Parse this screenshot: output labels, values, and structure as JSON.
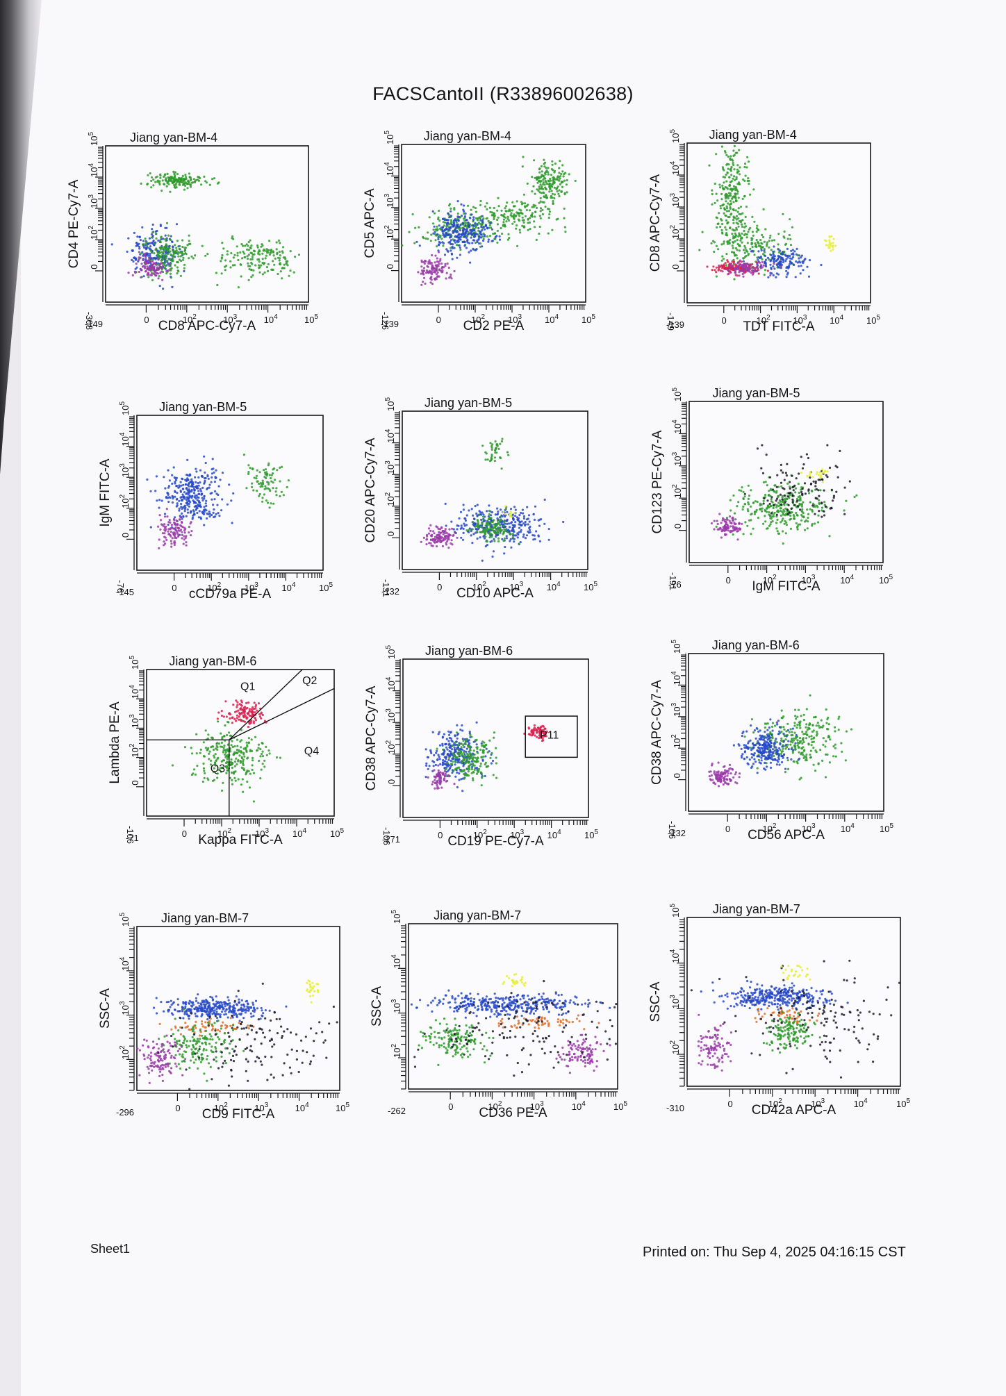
{
  "document": {
    "title": "FACSCantoII (R33896002638)",
    "sheet": "Sheet1",
    "printed": "Printed on: Thu Sep 4, 2025 04:16:15 CST"
  },
  "colors": {
    "green": "#2e9a2a",
    "blue": "#2749c8",
    "purple": "#9a3aa8",
    "red": "#d8204e",
    "yellow": "#e6ee3a",
    "orange": "#e0702a",
    "dark": "#1a1a2a"
  },
  "chart_data": [
    {
      "type": "scatter",
      "title": "Jiang yan-BM-4",
      "xlabel": "CD8 APC-Cy7-A",
      "ylabel": "CD4 PE-Cy7-A",
      "xmin_label": "-149",
      "ymin_label": "-308",
      "xlog": true,
      "ylog": true,
      "xlim": [
        0,
        5
      ],
      "ylim": [
        0,
        5
      ],
      "clusters": [
        {
          "color": "green",
          "x": 1.8,
          "y": 3.9,
          "sx": 0.35,
          "sy": 0.12,
          "n": 160
        },
        {
          "color": "green",
          "x": 3.7,
          "y": 1.4,
          "sx": 0.5,
          "sy": 0.3,
          "n": 170
        },
        {
          "color": "blue",
          "x": 1.2,
          "y": 1.6,
          "sx": 0.3,
          "sy": 0.35,
          "n": 220
        },
        {
          "color": "green",
          "x": 1.5,
          "y": 1.5,
          "sx": 0.3,
          "sy": 0.35,
          "n": 180
        },
        {
          "color": "purple",
          "x": 1.1,
          "y": 1.1,
          "sx": 0.2,
          "sy": 0.2,
          "n": 90
        }
      ]
    },
    {
      "type": "scatter",
      "title": "Jiang yan-BM-4",
      "xlabel": "CD2 PE-A",
      "ylabel": "CD5 APC-A",
      "xmin_label": "-139",
      "ymin_label": "-126",
      "xlog": true,
      "ylog": true,
      "xlim": [
        0,
        5
      ],
      "ylim": [
        0,
        5
      ],
      "clusters": [
        {
          "color": "green",
          "x": 4.0,
          "y": 3.8,
          "sx": 0.25,
          "sy": 0.35,
          "n": 170
        },
        {
          "color": "green",
          "x": 3.2,
          "y": 2.7,
          "sx": 0.6,
          "sy": 0.25,
          "n": 160
        },
        {
          "color": "green",
          "x": 1.6,
          "y": 2.4,
          "sx": 0.6,
          "sy": 0.3,
          "n": 200
        },
        {
          "color": "blue",
          "x": 1.6,
          "y": 2.2,
          "sx": 0.4,
          "sy": 0.3,
          "n": 260
        },
        {
          "color": "purple",
          "x": 0.9,
          "y": 1.0,
          "sx": 0.2,
          "sy": 0.2,
          "n": 110
        }
      ]
    },
    {
      "type": "scatter",
      "title": "Jiang yan-BM-4",
      "xlabel": "TDT FITC-A",
      "ylabel": "CD8 APC-Cy7-A",
      "xmin_label": "-139",
      "ymin_label": "-149",
      "xlog": true,
      "ylog": true,
      "xlim": [
        0,
        5
      ],
      "ylim": [
        0,
        5
      ],
      "clusters": [
        {
          "color": "green",
          "x": 1.2,
          "y": 3.4,
          "sx": 0.25,
          "sy": 0.8,
          "n": 260
        },
        {
          "color": "green",
          "x": 1.8,
          "y": 1.8,
          "sx": 0.5,
          "sy": 0.4,
          "n": 180
        },
        {
          "color": "blue",
          "x": 2.6,
          "y": 1.3,
          "sx": 0.45,
          "sy": 0.2,
          "n": 150
        },
        {
          "color": "red",
          "x": 1.3,
          "y": 1.1,
          "sx": 0.3,
          "sy": 0.1,
          "n": 120
        },
        {
          "color": "purple",
          "x": 1.6,
          "y": 1.1,
          "sx": 0.3,
          "sy": 0.1,
          "n": 90
        },
        {
          "color": "yellow",
          "x": 3.9,
          "y": 1.8,
          "sx": 0.08,
          "sy": 0.12,
          "n": 22
        }
      ]
    },
    {
      "type": "scatter",
      "title": "Jiang yan-BM-5",
      "xlabel": "cCD79a PE-A",
      "ylabel": "IgM FITC-A",
      "xmin_label": "-145",
      "ymin_label": "-76",
      "xlog": true,
      "ylog": true,
      "xlim": [
        0,
        5
      ],
      "ylim": [
        0,
        5
      ],
      "clusters": [
        {
          "color": "blue",
          "x": 1.5,
          "y": 2.4,
          "sx": 0.4,
          "sy": 0.45,
          "n": 320
        },
        {
          "color": "purple",
          "x": 1.0,
          "y": 1.3,
          "sx": 0.2,
          "sy": 0.25,
          "n": 110
        },
        {
          "color": "green",
          "x": 3.4,
          "y": 2.8,
          "sx": 0.25,
          "sy": 0.35,
          "n": 80
        }
      ]
    },
    {
      "type": "scatter",
      "title": "Jiang yan-BM-5",
      "xlabel": "CD10 APC-A",
      "ylabel": "CD20 APC-Cy7-A",
      "xmin_label": "-132",
      "ymin_label": "-131",
      "xlog": true,
      "ylog": true,
      "xlim": [
        0,
        5
      ],
      "ylim": [
        0,
        5
      ],
      "clusters": [
        {
          "color": "blue",
          "x": 2.6,
          "y": 1.4,
          "sx": 0.6,
          "sy": 0.3,
          "n": 320
        },
        {
          "color": "green",
          "x": 2.4,
          "y": 1.3,
          "sx": 0.25,
          "sy": 0.2,
          "n": 120
        },
        {
          "color": "green",
          "x": 2.5,
          "y": 3.7,
          "sx": 0.15,
          "sy": 0.2,
          "n": 40
        },
        {
          "color": "purple",
          "x": 1.0,
          "y": 1.0,
          "sx": 0.2,
          "sy": 0.15,
          "n": 110
        },
        {
          "color": "yellow",
          "x": 2.8,
          "y": 1.8,
          "sx": 0.1,
          "sy": 0.1,
          "n": 10
        }
      ]
    },
    {
      "type": "scatter",
      "title": "Jiang yan-BM-5",
      "xlabel": "IgM FITC-A",
      "ylabel": "CD123 PE-Cy7-A",
      "xmin_label": "-76",
      "ymin_label": "-191",
      "xlog": true,
      "ylog": true,
      "xlim": [
        0,
        5
      ],
      "ylim": [
        0,
        5
      ],
      "clusters": [
        {
          "color": "green",
          "x": 2.4,
          "y": 1.7,
          "sx": 0.6,
          "sy": 0.4,
          "n": 300
        },
        {
          "color": "dark",
          "x": 2.9,
          "y": 2.2,
          "sx": 0.6,
          "sy": 0.5,
          "n": 120
        },
        {
          "color": "purple",
          "x": 1.0,
          "y": 1.1,
          "sx": 0.2,
          "sy": 0.15,
          "n": 90
        },
        {
          "color": "yellow",
          "x": 3.3,
          "y": 2.7,
          "sx": 0.15,
          "sy": 0.15,
          "n": 20
        }
      ]
    },
    {
      "type": "scatter",
      "title": "Jiang yan-BM-6",
      "xlabel": "Kappa FITC-A",
      "ylabel": "Lambda PE-A",
      "xmin_label": "-71",
      "ymin_label": "-106",
      "xlog": true,
      "ylog": true,
      "xlim": [
        0,
        5
      ],
      "ylim": [
        0,
        5
      ],
      "quadrants": [
        "Q1",
        "Q2",
        "Q3",
        "Q4"
      ],
      "clusters": [
        {
          "color": "green",
          "x": 2.2,
          "y": 2.0,
          "sx": 0.5,
          "sy": 0.5,
          "n": 260
        },
        {
          "color": "red",
          "x": 2.6,
          "y": 3.5,
          "sx": 0.25,
          "sy": 0.2,
          "n": 120
        }
      ]
    },
    {
      "type": "scatter",
      "title": "Jiang yan-BM-6",
      "xlabel": "CD19 PE-Cy7-A",
      "ylabel": "CD38 APC-Cy7-A",
      "xmin_label": "-171",
      "ymin_label": "-106",
      "xlog": true,
      "ylog": true,
      "xlim": [
        0,
        5
      ],
      "ylim": [
        0,
        5
      ],
      "gate": "P11",
      "clusters": [
        {
          "color": "blue",
          "x": 1.4,
          "y": 2.0,
          "sx": 0.35,
          "sy": 0.4,
          "n": 260
        },
        {
          "color": "green",
          "x": 1.8,
          "y": 1.9,
          "sx": 0.35,
          "sy": 0.35,
          "n": 180
        },
        {
          "color": "purple",
          "x": 1.0,
          "y": 1.2,
          "sx": 0.15,
          "sy": 0.15,
          "n": 60
        },
        {
          "color": "red",
          "x": 3.7,
          "y": 2.7,
          "sx": 0.15,
          "sy": 0.1,
          "n": 70
        }
      ]
    },
    {
      "type": "scatter",
      "title": "Jiang yan-BM-6",
      "xlabel": "CD56 APC-A",
      "ylabel": "CD38 APC-Cy7-A",
      "xmin_label": "-132",
      "ymin_label": "-106",
      "xlog": true,
      "ylog": true,
      "xlim": [
        0,
        5
      ],
      "ylim": [
        0,
        5
      ],
      "clusters": [
        {
          "color": "green",
          "x": 2.8,
          "y": 2.3,
          "sx": 0.5,
          "sy": 0.45,
          "n": 260
        },
        {
          "color": "blue",
          "x": 2.0,
          "y": 2.0,
          "sx": 0.3,
          "sy": 0.3,
          "n": 260
        },
        {
          "color": "purple",
          "x": 0.9,
          "y": 1.1,
          "sx": 0.2,
          "sy": 0.15,
          "n": 100
        }
      ]
    },
    {
      "type": "scatter",
      "title": "Jiang yan-BM-7",
      "xlabel": "CD9 FITC-A",
      "ylabel": "SSC-A",
      "xmin_label": "-296",
      "ymin_label": "",
      "xlog": true,
      "ylog": true,
      "xlim": [
        0,
        5
      ],
      "ylim": [
        1.3,
        5
      ],
      "clusters": [
        {
          "color": "blue",
          "x": 1.9,
          "y": 3.15,
          "sx": 0.6,
          "sy": 0.12,
          "n": 320
        },
        {
          "color": "orange",
          "x": 1.9,
          "y": 2.75,
          "sx": 0.5,
          "sy": 0.08,
          "n": 60
        },
        {
          "color": "green",
          "x": 1.5,
          "y": 2.3,
          "sx": 0.45,
          "sy": 0.25,
          "n": 160
        },
        {
          "color": "purple",
          "x": 0.6,
          "y": 2.0,
          "sx": 0.25,
          "sy": 0.2,
          "n": 110
        },
        {
          "color": "dark",
          "x": 2.8,
          "y": 2.4,
          "sx": 1.0,
          "sy": 0.45,
          "n": 140
        },
        {
          "color": "yellow",
          "x": 4.3,
          "y": 3.6,
          "sx": 0.08,
          "sy": 0.1,
          "n": 25
        }
      ]
    },
    {
      "type": "scatter",
      "title": "Jiang yan-BM-7",
      "xlabel": "CD36 PE-A",
      "ylabel": "SSC-A",
      "xmin_label": "-262",
      "ymin_label": "",
      "xlog": true,
      "ylog": true,
      "xlim": [
        0,
        5
      ],
      "ylim": [
        1.3,
        5
      ],
      "clusters": [
        {
          "color": "blue",
          "x": 2.3,
          "y": 3.2,
          "sx": 0.9,
          "sy": 0.12,
          "n": 340
        },
        {
          "color": "orange",
          "x": 3.3,
          "y": 2.8,
          "sx": 0.6,
          "sy": 0.08,
          "n": 60
        },
        {
          "color": "green",
          "x": 1.1,
          "y": 2.4,
          "sx": 0.35,
          "sy": 0.2,
          "n": 150
        },
        {
          "color": "purple",
          "x": 4.1,
          "y": 2.1,
          "sx": 0.25,
          "sy": 0.18,
          "n": 100
        },
        {
          "color": "dark",
          "x": 2.8,
          "y": 2.6,
          "sx": 1.1,
          "sy": 0.45,
          "n": 140
        },
        {
          "color": "yellow",
          "x": 2.6,
          "y": 3.7,
          "sx": 0.15,
          "sy": 0.08,
          "n": 25
        }
      ]
    },
    {
      "type": "scatter",
      "title": "Jiang yan-BM-7",
      "xlabel": "CD42a APC-A",
      "ylabel": "SSC-A",
      "xmin_label": "-310",
      "ymin_label": "",
      "xlog": true,
      "ylog": true,
      "xlim": [
        0,
        5
      ],
      "ylim": [
        1.3,
        5
      ],
      "clusters": [
        {
          "color": "blue",
          "x": 2.1,
          "y": 3.25,
          "sx": 0.6,
          "sy": 0.12,
          "n": 320
        },
        {
          "color": "orange",
          "x": 2.2,
          "y": 2.85,
          "sx": 0.4,
          "sy": 0.08,
          "n": 50
        },
        {
          "color": "green",
          "x": 2.4,
          "y": 2.5,
          "sx": 0.25,
          "sy": 0.18,
          "n": 140
        },
        {
          "color": "purple",
          "x": 0.6,
          "y": 2.2,
          "sx": 0.2,
          "sy": 0.25,
          "n": 100
        },
        {
          "color": "dark",
          "x": 3.2,
          "y": 2.8,
          "sx": 1.0,
          "sy": 0.45,
          "n": 140
        },
        {
          "color": "yellow",
          "x": 2.6,
          "y": 3.8,
          "sx": 0.2,
          "sy": 0.08,
          "n": 25
        }
      ]
    }
  ]
}
